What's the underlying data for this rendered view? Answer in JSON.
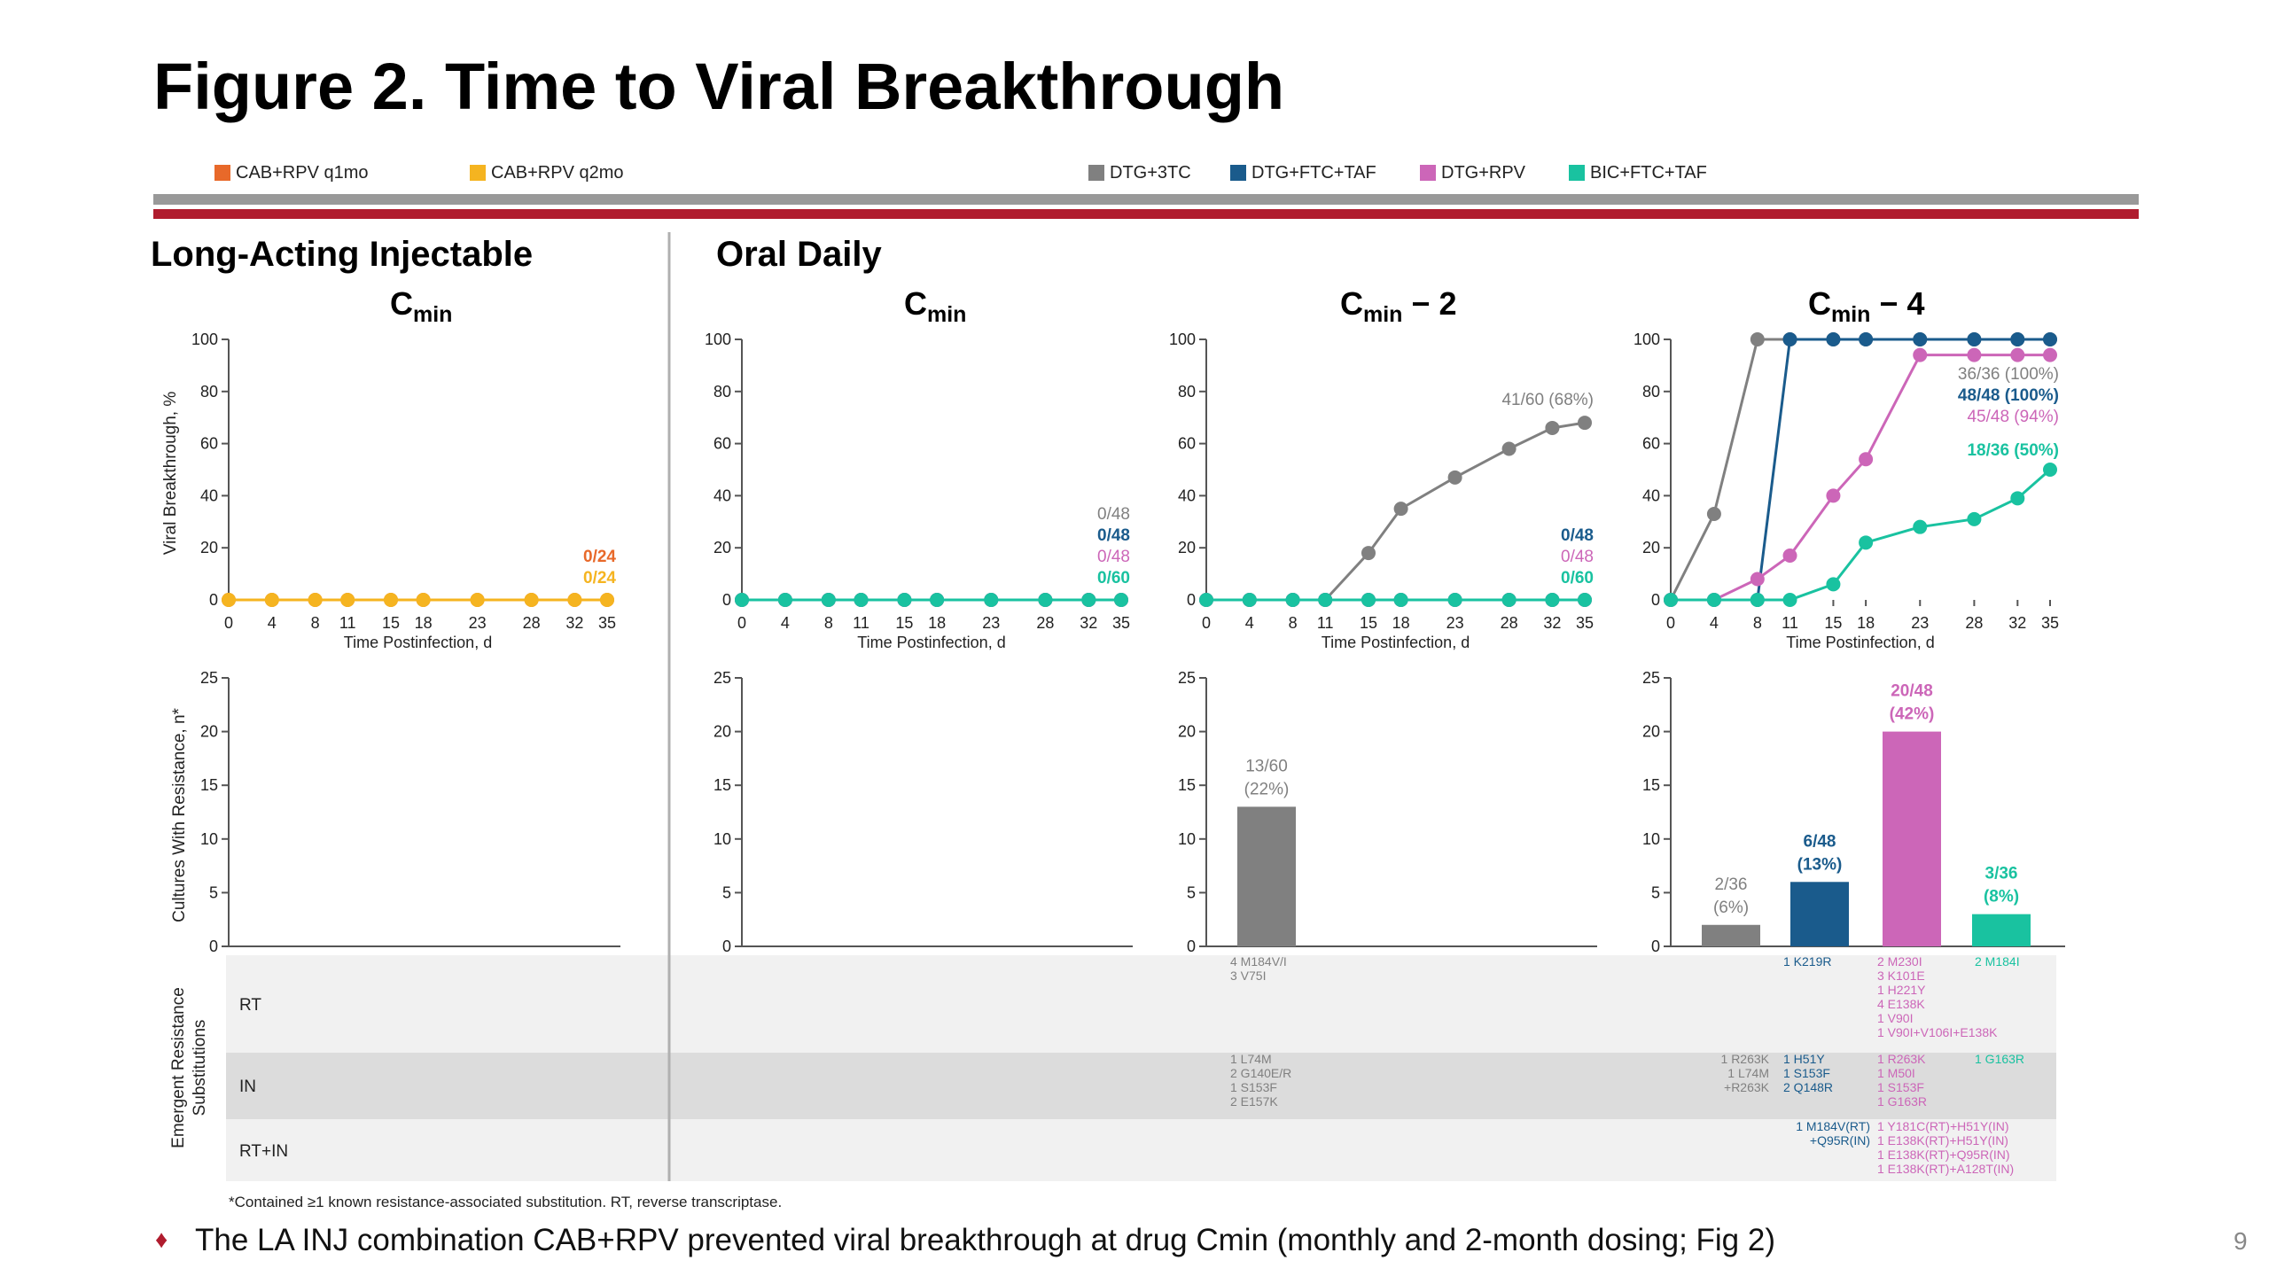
{
  "title": "Figure 2. Time to Viral Breakthrough",
  "legend": [
    {
      "label": "CAB+RPV q1mo",
      "color": "#e8692a"
    },
    {
      "label": "CAB+RPV q2mo",
      "color": "#f5b420"
    },
    {
      "label": "DTG+3TC",
      "color": "#808080"
    },
    {
      "label": "DTG+FTC+TAF",
      "color": "#1a5b8c"
    },
    {
      "label": "DTG+RPV",
      "color": "#cc66b8"
    },
    {
      "label": "BIC+FTC+TAF",
      "color": "#19c2a0"
    }
  ],
  "section_headings": {
    "long_acting": "Long-Acting Injectable",
    "oral": "Oral Daily"
  },
  "subtitles": {
    "cmin": "C",
    "cmin_sub": "min",
    "minus2": " − 2",
    "minus4": " − 4"
  },
  "footnote": "*Contained ≥1 known resistance-associated substitution. RT, reverse transcriptase.",
  "bullet": "The LA INJ combination CAB+RPV prevented viral breakthrough at drug Cmin (monthly and 2-month dosing; Fig 2)",
  "page_number": "9",
  "chart_data": [
    {
      "type": "line",
      "panel": "Long-Acting Injectable Cmin",
      "x": [
        0,
        4,
        8,
        11,
        15,
        18,
        23,
        28,
        32,
        35
      ],
      "xlabel": "Time Postinfection, d",
      "ylabel": "Viral Breakthrough, %",
      "ylim": [
        0,
        100
      ],
      "yticks": [
        0,
        20,
        40,
        60,
        80,
        100
      ],
      "series": [
        {
          "name": "CAB+RPV q1mo",
          "values": [
            0,
            0,
            0,
            0,
            0,
            0,
            0,
            0,
            0,
            0
          ],
          "label": "0/24"
        },
        {
          "name": "CAB+RPV q2mo",
          "values": [
            0,
            0,
            0,
            0,
            0,
            0,
            0,
            0,
            0,
            0
          ],
          "label": "0/24"
        }
      ]
    },
    {
      "type": "line",
      "panel": "Oral Daily Cmin",
      "x": [
        0,
        4,
        8,
        11,
        15,
        18,
        23,
        28,
        32,
        35
      ],
      "xlabel": "Time Postinfection, d",
      "ylim": [
        0,
        100
      ],
      "yticks": [
        0,
        20,
        40,
        60,
        80,
        100
      ],
      "series": [
        {
          "name": "DTG+3TC",
          "values": [
            0,
            0,
            0,
            0,
            0,
            0,
            0,
            0,
            0,
            0
          ],
          "label": "0/48"
        },
        {
          "name": "DTG+FTC+TAF",
          "values": [
            0,
            0,
            0,
            0,
            0,
            0,
            0,
            0,
            0,
            0
          ],
          "label": "0/48"
        },
        {
          "name": "DTG+RPV",
          "values": [
            0,
            0,
            0,
            0,
            0,
            0,
            0,
            0,
            0,
            0
          ],
          "label": "0/48"
        },
        {
          "name": "BIC+FTC+TAF",
          "values": [
            0,
            0,
            0,
            0,
            0,
            0,
            0,
            0,
            0,
            0
          ],
          "label": "0/60"
        }
      ]
    },
    {
      "type": "line",
      "panel": "Oral Daily Cmin − 2",
      "x": [
        0,
        4,
        8,
        11,
        15,
        18,
        23,
        28,
        32,
        35
      ],
      "xlabel": "Time Postinfection, d",
      "ylim": [
        0,
        100
      ],
      "yticks": [
        0,
        20,
        40,
        60,
        80,
        100
      ],
      "series": [
        {
          "name": "DTG+3TC",
          "values": [
            0,
            0,
            0,
            0,
            18,
            35,
            47,
            58,
            66,
            68
          ],
          "label": "41/60 (68%)"
        },
        {
          "name": "DTG+FTC+TAF",
          "values": [
            0,
            0,
            0,
            0,
            0,
            0,
            0,
            0,
            0,
            0
          ],
          "label": "0/48"
        },
        {
          "name": "DTG+RPV",
          "values": [
            0,
            0,
            0,
            0,
            0,
            0,
            0,
            0,
            0,
            0
          ],
          "label": "0/48"
        },
        {
          "name": "BIC+FTC+TAF",
          "values": [
            0,
            0,
            0,
            0,
            0,
            0,
            0,
            0,
            0,
            0
          ],
          "label": "0/60"
        }
      ]
    },
    {
      "type": "line",
      "panel": "Oral Daily Cmin − 4",
      "x": [
        0,
        4,
        8,
        11,
        15,
        18,
        23,
        28,
        32,
        35
      ],
      "xlabel": "Time Postinfection, d",
      "ylim": [
        0,
        100
      ],
      "yticks": [
        0,
        20,
        40,
        60,
        80,
        100
      ],
      "series": [
        {
          "name": "DTG+3TC",
          "values": [
            0,
            33,
            100,
            100,
            100,
            100,
            100,
            100,
            100,
            100
          ],
          "label": "36/36 (100%)"
        },
        {
          "name": "DTG+FTC+TAF",
          "values": [
            0,
            0,
            0,
            100,
            100,
            100,
            100,
            100,
            100,
            100
          ],
          "label": "48/48 (100%)"
        },
        {
          "name": "DTG+RPV",
          "values": [
            0,
            0,
            8,
            17,
            40,
            54,
            94,
            94,
            94,
            94
          ],
          "label": "45/48 (94%)"
        },
        {
          "name": "BIC+FTC+TAF",
          "values": [
            0,
            0,
            0,
            0,
            6,
            22,
            28,
            31,
            39,
            50
          ],
          "label": "18/36 (50%)"
        }
      ]
    },
    {
      "type": "bar",
      "panel": "Long-Acting Injectable resistance",
      "ylabel": "Cultures With Resistance, n*",
      "ylim": [
        0,
        25
      ],
      "yticks": [
        0,
        5,
        10,
        15,
        20,
        25
      ],
      "bars": []
    },
    {
      "type": "bar",
      "panel": "Oral Daily Cmin resistance",
      "ylim": [
        0,
        25
      ],
      "yticks": [
        0,
        5,
        10,
        15,
        20,
        25
      ],
      "bars": []
    },
    {
      "type": "bar",
      "panel": "Oral Daily Cmin − 2 resistance",
      "ylim": [
        0,
        25
      ],
      "yticks": [
        0,
        5,
        10,
        15,
        20,
        25
      ],
      "bars": [
        {
          "name": "DTG+3TC",
          "value": 13,
          "label1": "13/60",
          "label2": "(22%)"
        }
      ]
    },
    {
      "type": "bar",
      "panel": "Oral Daily Cmin − 4 resistance",
      "ylim": [
        0,
        25
      ],
      "yticks": [
        0,
        5,
        10,
        15,
        20,
        25
      ],
      "bars": [
        {
          "name": "DTG+3TC",
          "value": 2,
          "label1": "2/36",
          "label2": "(6%)"
        },
        {
          "name": "DTG+FTC+TAF",
          "value": 6,
          "label1": "6/48",
          "label2": "(13%)"
        },
        {
          "name": "DTG+RPV",
          "value": 20,
          "label1": "20/48",
          "label2": "(42%)"
        },
        {
          "name": "BIC+FTC+TAF",
          "value": 3,
          "label1": "3/36",
          "label2": "(8%)"
        }
      ]
    }
  ],
  "substitutions": {
    "axis_title_line1": "Emergent Resistance",
    "axis_title_line2": "Substitutions",
    "row_labels": [
      "RT",
      "IN",
      "RT+IN"
    ],
    "cmin2": {
      "RT": [
        {
          "color": "#808080",
          "lines": [
            "4 M184V/I",
            "3 V75I"
          ]
        }
      ],
      "IN": [
        {
          "color": "#808080",
          "lines": [
            "1 L74M",
            "2 G140E/R",
            "1 S153F",
            "2 E157K"
          ]
        }
      ],
      "RTIN": []
    },
    "cmin4": {
      "RT": [
        {
          "color": "#1a5b8c",
          "lines": [
            "1 K219R"
          ]
        },
        {
          "color": "#cc66b8",
          "lines": [
            "2 M230I",
            "3 K101E",
            "1 H221Y",
            "4 E138K",
            "1 V90I",
            "1 V90I+V106I+E138K"
          ]
        },
        {
          "color": "#19c2a0",
          "lines": [
            "2 M184I"
          ]
        }
      ],
      "IN": [
        {
          "color": "#808080",
          "lines": [
            "1 R263K",
            "1 L74M",
            "+R263K"
          ]
        },
        {
          "color": "#1a5b8c",
          "lines": [
            "1 H51Y",
            "1 S153F",
            "2 Q148R"
          ]
        },
        {
          "color": "#cc66b8",
          "lines": [
            "1 R263K",
            "1 M50I",
            "1 S153F",
            "1 G163R"
          ]
        },
        {
          "color": "#19c2a0",
          "lines": [
            "1 G163R"
          ]
        }
      ],
      "RTIN": [
        {
          "color": "#1a5b8c",
          "lines": [
            "1 M184V(RT)",
            "+Q95R(IN)"
          ]
        },
        {
          "color": "#cc66b8",
          "lines": [
            "1 Y181C(RT)+H51Y(IN)",
            "1 E138K(RT)+H51Y(IN)",
            "1 E138K(RT)+Q95R(IN)",
            "1 E138K(RT)+A128T(IN)"
          ]
        }
      ]
    }
  }
}
